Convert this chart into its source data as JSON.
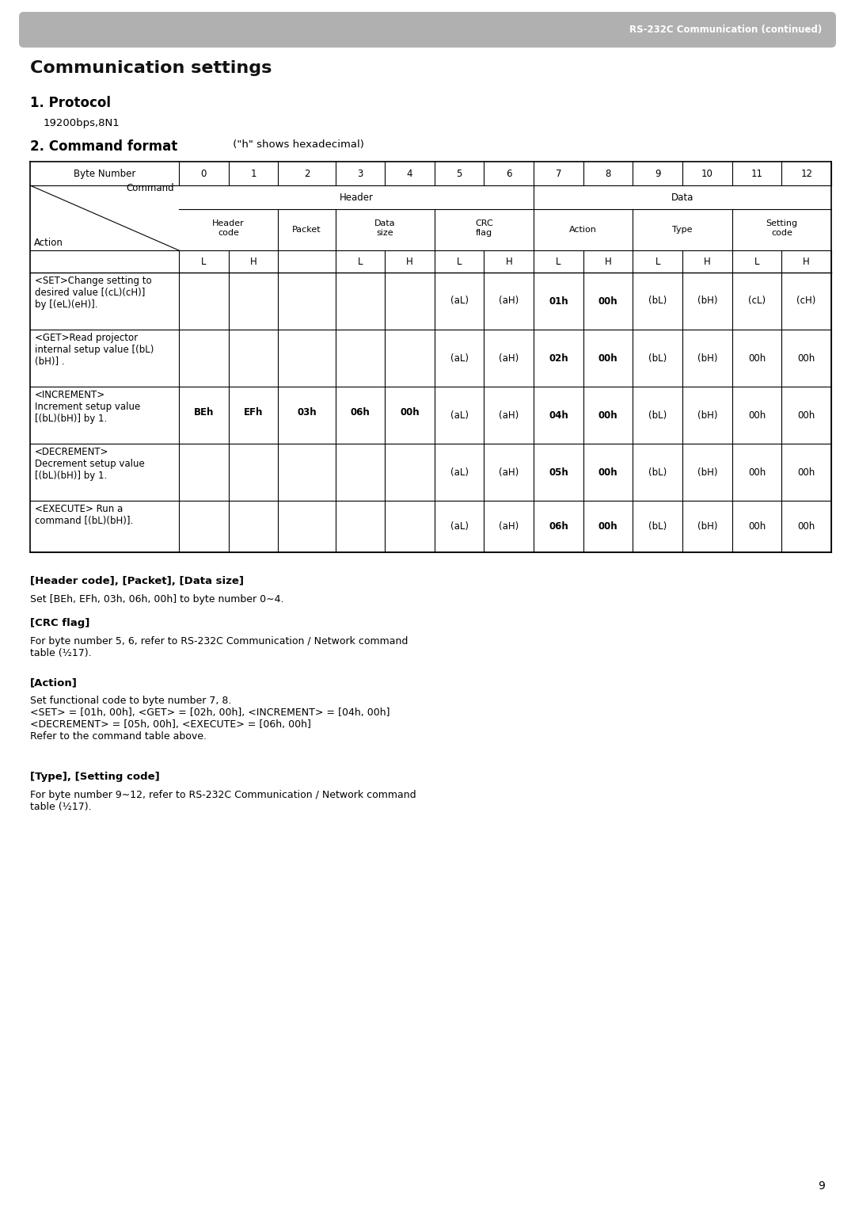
{
  "page_bg": "#ffffff",
  "header_bar_color": "#b0b0b0",
  "header_bar_text": "RS-232C Communication (continued)",
  "header_bar_text_color": "#ffffff",
  "title": "Communication settings",
  "section1_title": "1. Protocol",
  "section1_body": "19200bps,8N1",
  "section2_title": "2. Command format",
  "section2_subtitle": " (\"h\" shows hexadecimal)",
  "data_rows": [
    {
      "action": "<SET>Change setting to\ndesired value [(cL)(cH)]\nby [(eL)(eH)].",
      "cells": [
        "",
        "",
        "",
        "",
        "",
        "(aL)",
        "(aH)",
        "01h",
        "00h",
        "(bL)",
        "(bH)",
        "(cL)",
        "(cH)"
      ]
    },
    {
      "action": "<GET>Read projector\ninternal setup value [(bL)\n(bH)] .",
      "cells": [
        "",
        "",
        "",
        "",
        "",
        "(aL)",
        "(aH)",
        "02h",
        "00h",
        "(bL)",
        "(bH)",
        "00h",
        "00h"
      ]
    },
    {
      "action": "<INCREMENT>\nIncrement setup value\n[(bL)(bH)] by 1.",
      "cells": [
        "BEh",
        "EFh",
        "03h",
        "06h",
        "00h",
        "(aL)",
        "(aH)",
        "04h",
        "00h",
        "(bL)",
        "(bH)",
        "00h",
        "00h"
      ]
    },
    {
      "action": "<DECREMENT>\nDecrement setup value\n[(bL)(bH)] by 1.",
      "cells": [
        "",
        "",
        "",
        "",
        "",
        "(aL)",
        "(aH)",
        "05h",
        "00h",
        "(bL)",
        "(bH)",
        "00h",
        "00h"
      ]
    },
    {
      "action": "<EXECUTE> Run a\ncommand [(bL)(bH)].",
      "cells": [
        "",
        "",
        "",
        "",
        "",
        "(aL)",
        "(aH)",
        "06h",
        "00h",
        "(bL)",
        "(bH)",
        "00h",
        "00h"
      ]
    }
  ],
  "footnotes": [
    {
      "heading": "[Header code], [Packet], [Data size]",
      "body": "Set [BEh, EFh, 03h, 06h, 00h] to byte number 0∼4."
    },
    {
      "heading": "[CRC flag]",
      "body": "For byte number 5, 6, refer to RS-232C Communication / Network command\ntable (½17)."
    },
    {
      "heading": "[Action]",
      "body": "Set functional code to byte number 7, 8.\n<SET> = [01h, 00h], <GET> = [02h, 00h], <INCREMENT> = [04h, 00h]\n<DECREMENT> = [05h, 00h], <EXECUTE> = [06h, 00h]\nRefer to the command table above."
    },
    {
      "heading": "[Type], [Setting code]",
      "body": "For byte number 9∼12, refer to RS-232C Communication / Network command\ntable (½17)."
    }
  ],
  "page_number": "9"
}
